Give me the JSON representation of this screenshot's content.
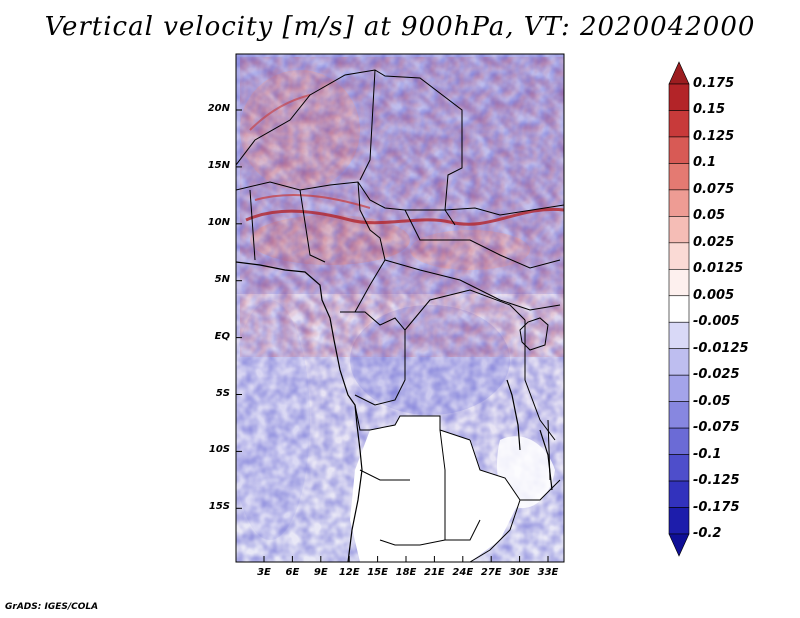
{
  "title": "Vertical velocity [m/s] at 900hPa, VT: 2020042000",
  "footer": "GrADS: IGES/COLA",
  "map": {
    "lat_labels": [
      "20N",
      "15N",
      "10N",
      "5N",
      "EQ",
      "5S",
      "10S",
      "15S"
    ],
    "lon_labels": [
      "3E",
      "6E",
      "9E",
      "12E",
      "15E",
      "18E",
      "21E",
      "24E",
      "27E",
      "30E",
      "33E"
    ]
  },
  "colorbar": {
    "labels": [
      "0.175",
      "0.15",
      "0.125",
      "0.1",
      "0.075",
      "0.05",
      "0.025",
      "0.0125",
      "0.005",
      "-0.005",
      "-0.0125",
      "-0.025",
      "-0.05",
      "-0.075",
      "-0.1",
      "-0.125",
      "-0.175",
      "-0.2"
    ],
    "colors": [
      "#9c1d20",
      "#b32428",
      "#c83a3a",
      "#d85a55",
      "#e47a72",
      "#ee9c94",
      "#f5bdb6",
      "#fadad5",
      "#fdf0ee",
      "#ffffff",
      "#d9d9f7",
      "#bebef0",
      "#a4a4ea",
      "#8787e0",
      "#6b6bd6",
      "#4e4ecb",
      "#3232bd",
      "#1d1dab",
      "#0f0f96"
    ]
  }
}
